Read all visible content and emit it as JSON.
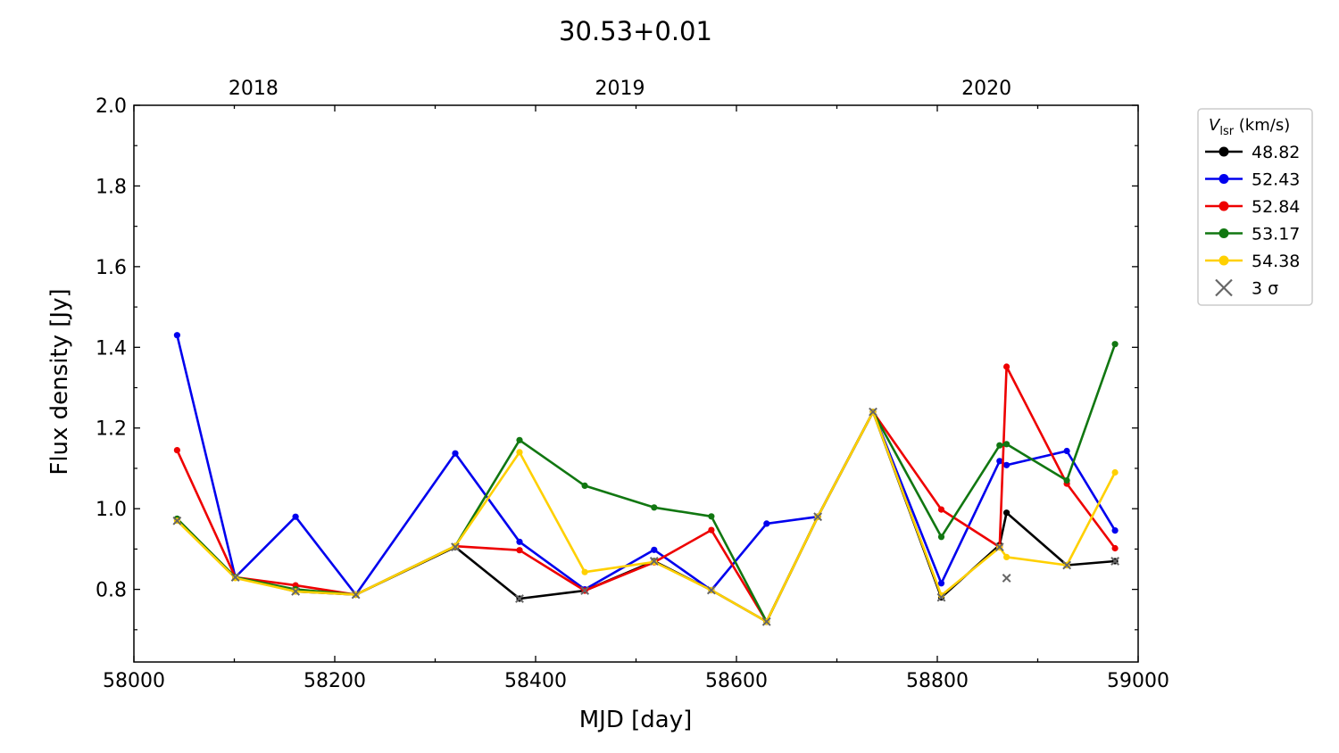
{
  "chart_data": {
    "type": "line",
    "title": "30.53+0.01",
    "xlabel": "MJD [day]",
    "ylabel": "Flux density [Jy]",
    "xlim": [
      58000,
      59000
    ],
    "ylim": [
      0.62,
      2.0
    ],
    "x_ticks": [
      58000,
      58200,
      58400,
      58600,
      58800,
      59000
    ],
    "y_ticks": [
      0.8,
      1.0,
      1.2,
      1.4,
      1.6,
      1.8,
      2.0
    ],
    "y_tick_labels": [
      "0.8",
      "1.0",
      "1.2",
      "1.4",
      "1.6",
      "1.8",
      "2.0"
    ],
    "top_axis": {
      "ticks": [
        {
          "label": "2018",
          "mjd": 58119
        },
        {
          "label": "2019",
          "mjd": 58484
        },
        {
          "label": "2020",
          "mjd": 58849
        }
      ]
    },
    "legend": {
      "title_symbol": "V",
      "title_subscript": "lsr",
      "title_unit": " (km/s)",
      "placement": "outside-right",
      "upper_limit_label": "3 σ"
    },
    "grid": false,
    "series": [
      {
        "name": "48.82",
        "color": "#000000",
        "x": [
          58043,
          58101,
          58161,
          58221,
          58320,
          58384,
          58449,
          58518,
          58575,
          58630,
          58681,
          58736,
          58804,
          58862,
          58869,
          58929,
          58977
        ],
        "y": [
          0.975,
          0.83,
          0.795,
          0.787,
          0.905,
          0.777,
          0.797,
          0.87,
          0.798,
          0.72,
          0.98,
          1.24,
          0.78,
          0.91,
          0.99,
          0.86,
          0.87
        ]
      },
      {
        "name": "52.43",
        "color": "#0000ee",
        "x": [
          58043,
          58101,
          58161,
          58221,
          58320,
          58384,
          58449,
          58518,
          58575,
          58630,
          58681,
          58736,
          58804,
          58862,
          58869,
          58929,
          58977
        ],
        "y": [
          1.43,
          0.83,
          0.98,
          0.787,
          1.137,
          0.918,
          0.8,
          0.898,
          0.798,
          0.963,
          0.98,
          1.24,
          0.815,
          1.118,
          1.108,
          1.143,
          0.946
        ]
      },
      {
        "name": "52.84",
        "color": "#ee0000",
        "x": [
          58043,
          58101,
          58161,
          58221,
          58320,
          58384,
          58449,
          58518,
          58575,
          58630,
          58681,
          58736,
          58804,
          58862,
          58869,
          58929,
          58977
        ],
        "y": [
          1.145,
          0.83,
          0.81,
          0.787,
          0.907,
          0.897,
          0.797,
          0.867,
          0.947,
          0.72,
          0.98,
          1.24,
          0.998,
          0.905,
          1.352,
          1.062,
          0.902
        ]
      },
      {
        "name": "53.17",
        "color": "#117711",
        "x": [
          58043,
          58101,
          58161,
          58221,
          58320,
          58384,
          58449,
          58518,
          58575,
          58630,
          58681,
          58736,
          58804,
          58862,
          58869,
          58929,
          58977
        ],
        "y": [
          0.975,
          0.83,
          0.8,
          0.787,
          0.907,
          1.17,
          1.057,
          1.003,
          0.981,
          0.72,
          0.98,
          1.24,
          0.93,
          1.157,
          1.16,
          1.07,
          1.408
        ]
      },
      {
        "name": "54.38",
        "color": "#ffd000",
        "x": [
          58043,
          58101,
          58161,
          58221,
          58320,
          58384,
          58449,
          58518,
          58575,
          58630,
          58681,
          58736,
          58804,
          58862,
          58869,
          58929,
          58977
        ],
        "y": [
          0.97,
          0.828,
          0.795,
          0.787,
          0.907,
          1.14,
          0.843,
          0.868,
          0.798,
          0.72,
          0.98,
          1.24,
          0.785,
          0.904,
          0.88,
          0.86,
          1.09
        ]
      }
    ],
    "upper_limits_3sigma": {
      "color": "#666666",
      "x": [
        58043,
        58101,
        58161,
        58221,
        58320,
        58384,
        58449,
        58518,
        58575,
        58630,
        58681,
        58736,
        58804,
        58862,
        58869,
        58929,
        58977
      ],
      "y": [
        0.97,
        0.83,
        0.795,
        0.787,
        0.905,
        0.777,
        0.797,
        0.87,
        0.798,
        0.72,
        0.98,
        1.24,
        0.78,
        0.905,
        0.828,
        0.86,
        0.87
      ]
    }
  }
}
